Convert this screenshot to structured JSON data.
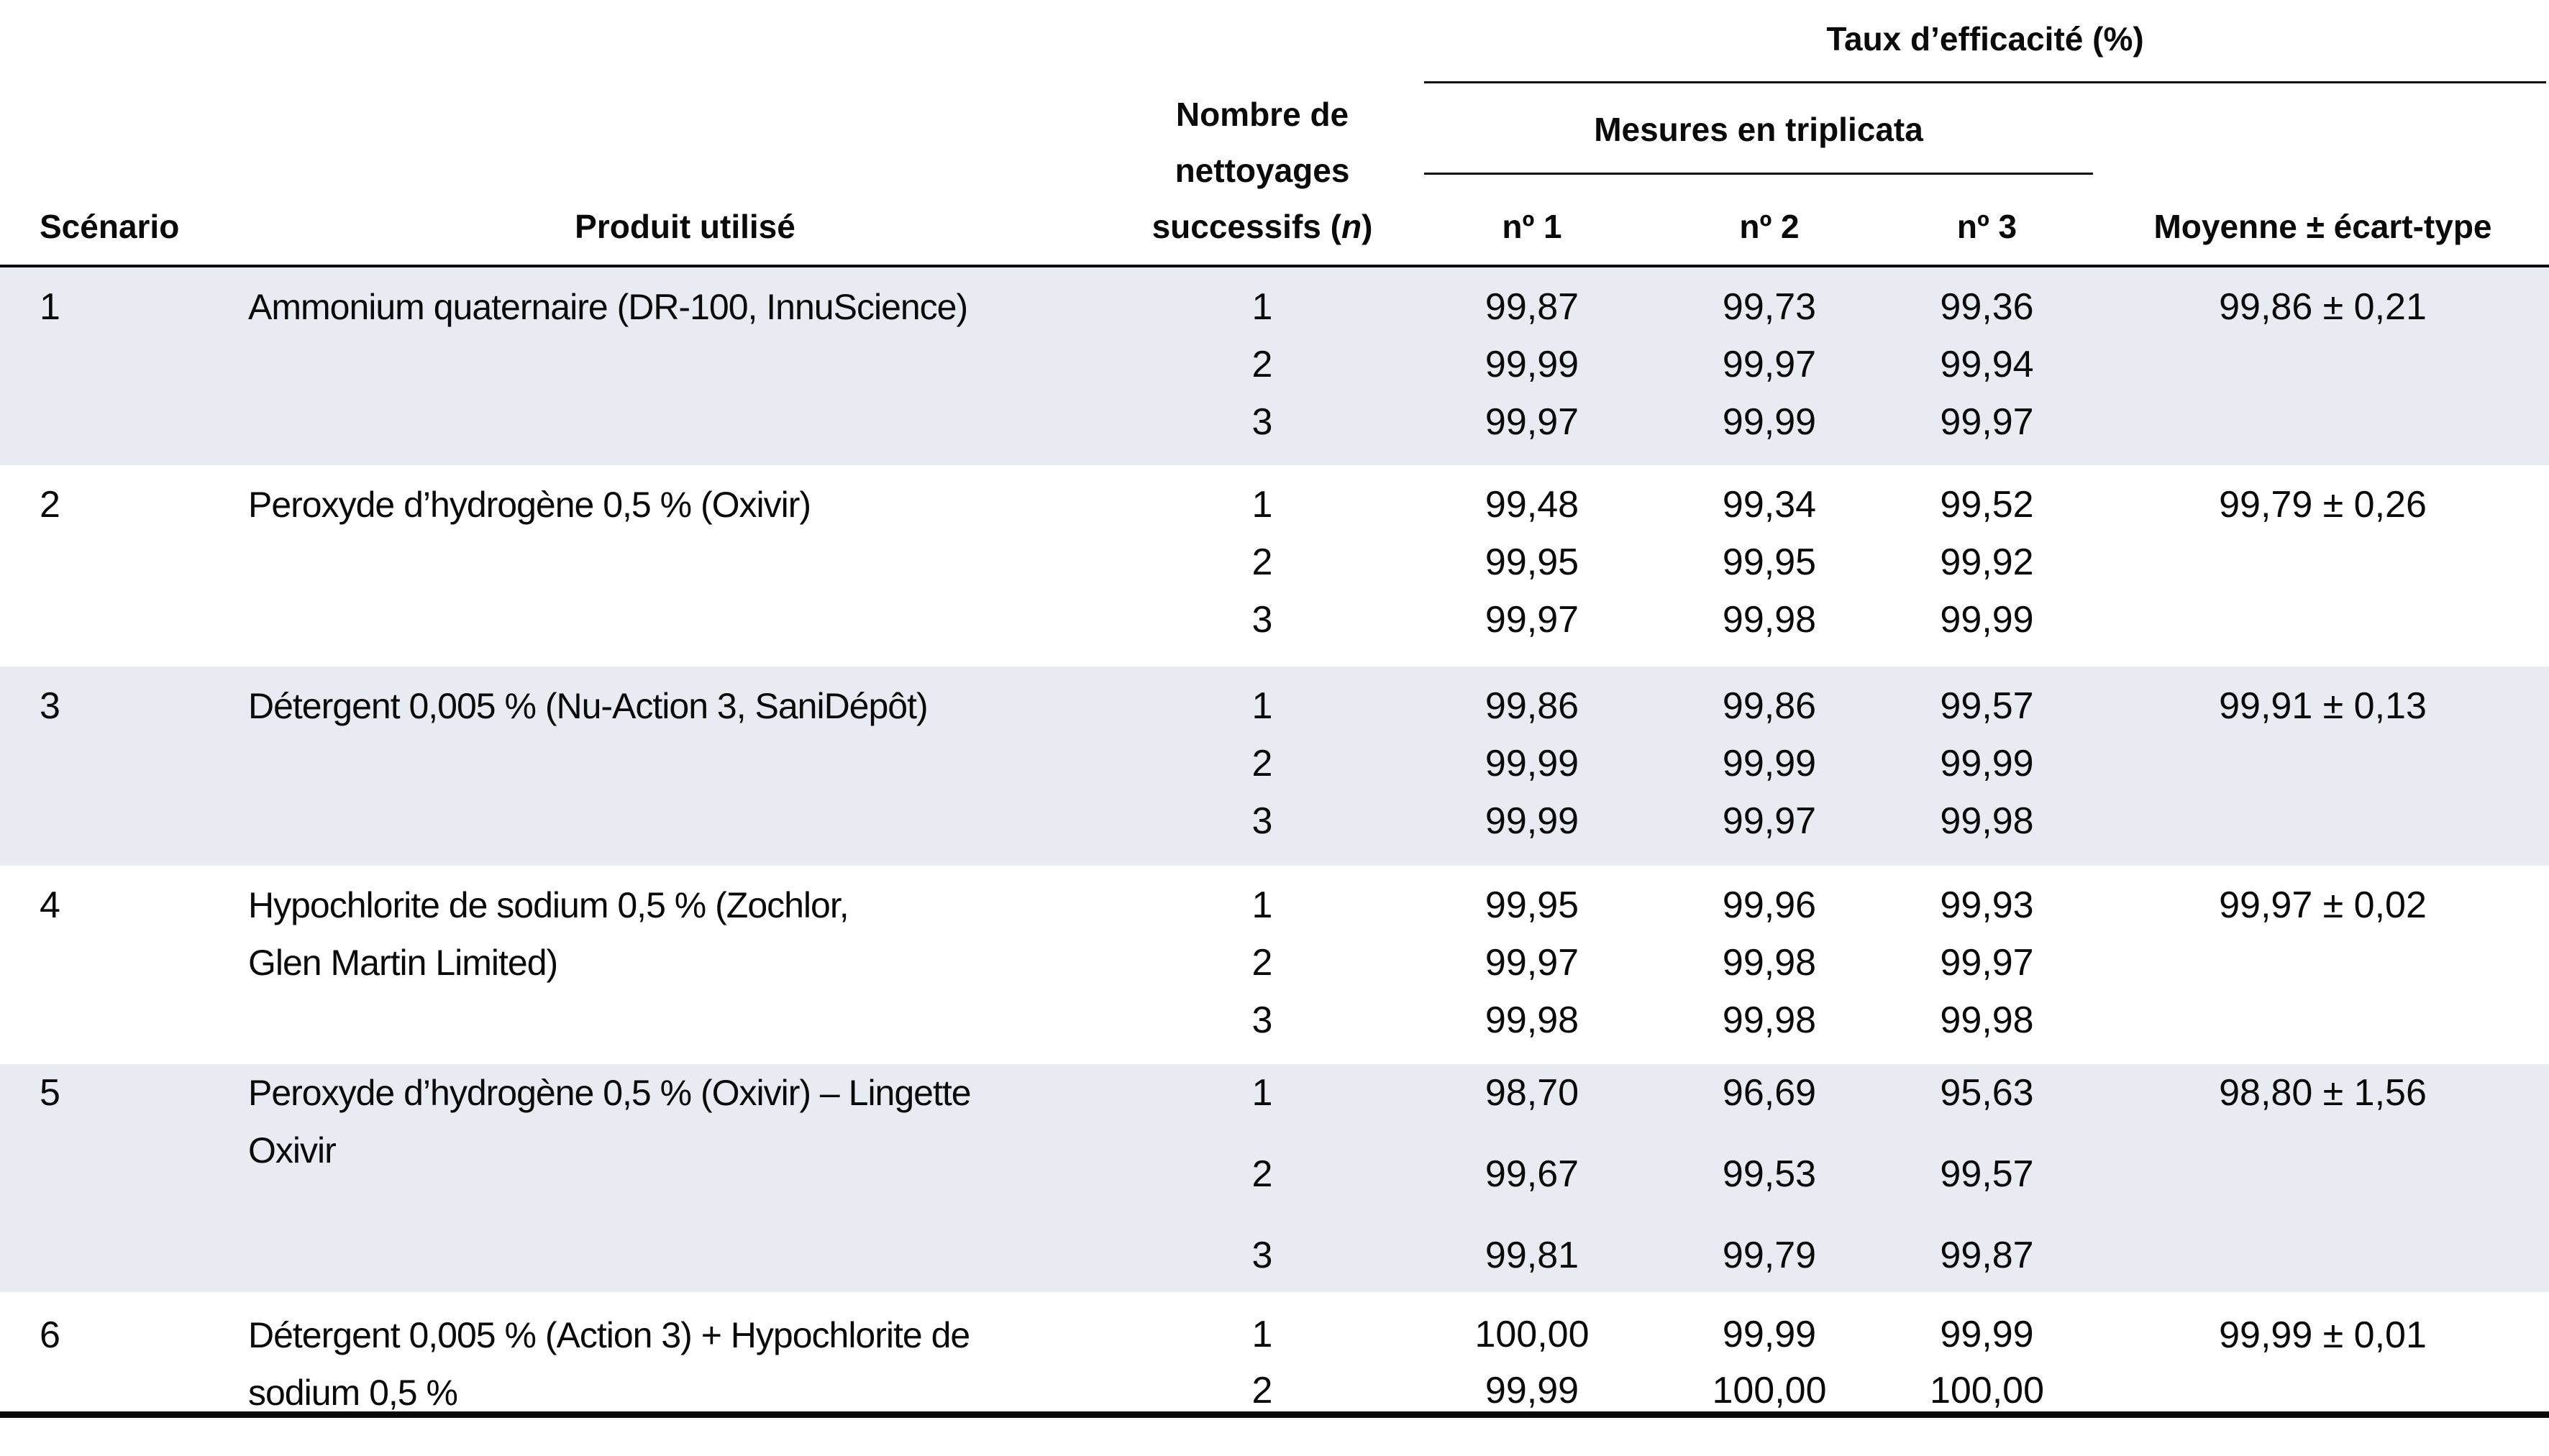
{
  "colors": {
    "stripe": "#e9ebf2",
    "rule": "#0a0a0a",
    "background": "#ffffff"
  },
  "header": {
    "scenario": "Scénario",
    "product": "Produit utilisé",
    "cleanings_line1": "Nombre de",
    "cleanings_line2": "nettoyages",
    "cleanings_line3_prefix": "successifs (",
    "cleanings_line3_italic": "n",
    "cleanings_line3_suffix": ")",
    "efficacy_group": "Taux d’efficacité (%)",
    "triplicate_group": "Mesures en triplicata",
    "measure1": "nº 1",
    "measure2": "nº 2",
    "measure3": "nº 3",
    "mean": "Moyenne ± écart-type"
  },
  "rows": [
    {
      "scenario": "1",
      "product_line1": "Ammonium quaternaire (DR-100, InnuScience)",
      "product_line2": "",
      "n": [
        "1",
        "2",
        "3"
      ],
      "c1": [
        "99,87",
        "99,99",
        "99,97"
      ],
      "c2": [
        "99,73",
        "99,97",
        "99,99"
      ],
      "c3": [
        "99,36",
        "99,94",
        "99,97"
      ],
      "mean": "99,86 ± 0,21"
    },
    {
      "scenario": "2",
      "product_line1": "Peroxyde d’hydrogène 0,5 % (Oxivir)",
      "product_line2": "",
      "n": [
        "1",
        "2",
        "3"
      ],
      "c1": [
        "99,48",
        "99,95",
        "99,97"
      ],
      "c2": [
        "99,34",
        "99,95",
        "99,98"
      ],
      "c3": [
        "99,52",
        "99,92",
        "99,99"
      ],
      "mean": "99,79 ± 0,26"
    },
    {
      "scenario": "3",
      "product_line1": "Détergent 0,005 % (Nu-Action 3, SaniDépôt)",
      "product_line2": "",
      "n": [
        "1",
        "2",
        "3"
      ],
      "c1": [
        "99,86",
        "99,99",
        "99,99"
      ],
      "c2": [
        "99,86",
        "99,99",
        "99,97"
      ],
      "c3": [
        "99,57",
        "99,99",
        "99,98"
      ],
      "mean": "99,91 ± 0,13"
    },
    {
      "scenario": "4",
      "product_line1": "Hypochlorite de sodium 0,5 % (Zochlor,",
      "product_line2": "Glen Martin Limited)",
      "n": [
        "1",
        "2",
        "3"
      ],
      "c1": [
        "99,95",
        "99,97",
        "99,98"
      ],
      "c2": [
        "99,96",
        "99,98",
        "99,98"
      ],
      "c3": [
        "99,93",
        "99,97",
        "99,98"
      ],
      "mean": "99,97 ± 0,02"
    },
    {
      "scenario": "5",
      "product_line1": "Peroxyde d’hydrogène 0,5 % (Oxivir) – Lingette",
      "product_line2": "Oxivir",
      "n": [
        "1",
        "2",
        "3"
      ],
      "c1": [
        "98,70",
        "99,67",
        "99,81"
      ],
      "c2": [
        "96,69",
        "99,53",
        "99,79"
      ],
      "c3": [
        "95,63",
        "99,57",
        "99,87"
      ],
      "mean": "98,80 ± 1,56"
    },
    {
      "scenario": "6",
      "product_line1": "Détergent 0,005 % (Action 3) + Hypochlorite de",
      "product_line2": "sodium 0,5 %",
      "n": [
        "1",
        "2"
      ],
      "c1": [
        "100,00",
        "99,99"
      ],
      "c2": [
        "99,99",
        "100,00"
      ],
      "c3": [
        "99,99",
        "100,00"
      ],
      "mean": "99,99 ± 0,01"
    }
  ]
}
